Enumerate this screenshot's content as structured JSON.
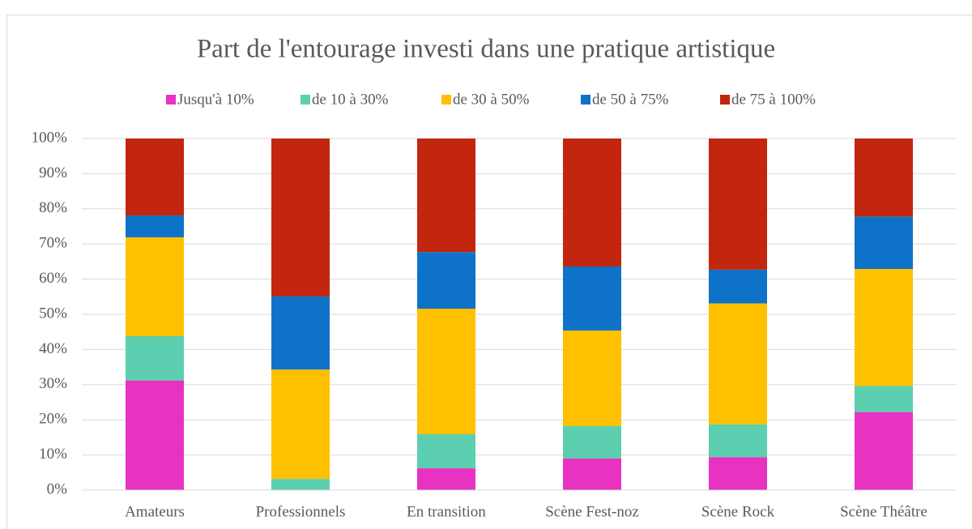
{
  "chart_data": {
    "type": "stacked_bar_100",
    "title": "Part de l'entourage investi dans une pratique artistique",
    "categories": [
      "Amateurs",
      "Professionnels",
      "En transition",
      "Scène Fest-noz",
      "Scène Rock",
      "Scène Théâtre"
    ],
    "series": [
      {
        "name": "Jusqu'à 10%",
        "color": "#e832c2",
        "values": [
          31.2,
          0,
          6.2,
          9.0,
          9.4,
          22.2
        ]
      },
      {
        "name": "de 10 à 30%",
        "color": "#5ccfb1",
        "values": [
          12.6,
          3.2,
          9.7,
          9.2,
          9.3,
          7.4
        ]
      },
      {
        "name": "de 30 à 50%",
        "color": "#ffc000",
        "values": [
          28.1,
          31.1,
          35.7,
          27.2,
          34.4,
          33.3
        ]
      },
      {
        "name": "de 50 à 75%",
        "color": "#0f72c9",
        "values": [
          6.2,
          20.8,
          16.1,
          18.2,
          9.6,
          14.9
        ]
      },
      {
        "name": "de 75 à 100%",
        "color": "#c2260e",
        "values": [
          21.9,
          44.9,
          32.3,
          36.4,
          37.3,
          22.2
        ]
      }
    ],
    "ylim": [
      0,
      100
    ],
    "yticks": [
      {
        "value": 0,
        "label": "0%"
      },
      {
        "value": 10,
        "label": "10%"
      },
      {
        "value": 20,
        "label": "20%"
      },
      {
        "value": 30,
        "label": "30%"
      },
      {
        "value": 40,
        "label": "40%"
      },
      {
        "value": 50,
        "label": "50%"
      },
      {
        "value": 60,
        "label": "60%"
      },
      {
        "value": 70,
        "label": "70%"
      },
      {
        "value": 80,
        "label": "80%"
      },
      {
        "value": 90,
        "label": "90%"
      },
      {
        "value": 100,
        "label": "100%"
      }
    ],
    "grid": true,
    "legend": "top"
  }
}
